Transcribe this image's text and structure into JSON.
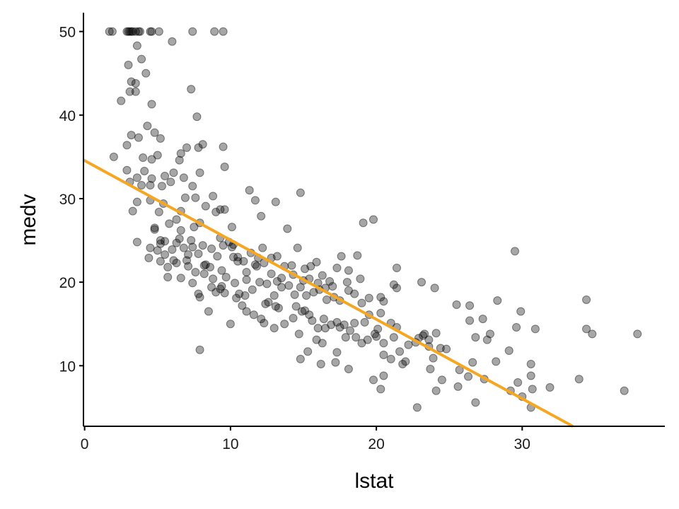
{
  "chart_data": {
    "type": "scatter",
    "xlabel": "lstat",
    "ylabel": "medv",
    "xlim": [
      -0.08,
      39.78
    ],
    "ylim": [
      2.75,
      52.25
    ],
    "x_ticks": [
      0,
      10,
      20,
      30
    ],
    "y_ticks": [
      10,
      20,
      30,
      40,
      50
    ],
    "x_tick_labels": [
      "0",
      "10",
      "20",
      "30"
    ],
    "y_tick_labels": [
      "10",
      "20",
      "30",
      "40",
      "50"
    ],
    "grid": false,
    "point_color": "#000000",
    "point_alpha": 0.35,
    "fit_line": {
      "type": "linear",
      "intercept": 34.55,
      "slope": -0.95,
      "color": "#F5A623"
    },
    "points": [
      [
        1.7,
        50
      ],
      [
        1.9,
        50
      ],
      [
        2.9,
        50
      ],
      [
        3.0,
        50
      ],
      [
        3.1,
        50
      ],
      [
        3.2,
        50
      ],
      [
        3.3,
        50
      ],
      [
        3.5,
        50
      ],
      [
        3.7,
        50
      ],
      [
        3.8,
        50
      ],
      [
        4.5,
        50
      ],
      [
        4.6,
        50
      ],
      [
        5.1,
        50
      ],
      [
        7.4,
        50
      ],
      [
        8.9,
        50
      ],
      [
        9.5,
        50
      ],
      [
        6,
        48.8
      ],
      [
        3.6,
        48.3
      ],
      [
        3.9,
        46.7
      ],
      [
        3,
        46
      ],
      [
        4.2,
        45
      ],
      [
        3.2,
        44
      ],
      [
        3.5,
        43.8
      ],
      [
        3.1,
        42.8
      ],
      [
        3.5,
        42.8
      ],
      [
        7.3,
        43.1
      ],
      [
        2.5,
        41.7
      ],
      [
        4.6,
        41.3
      ],
      [
        7.7,
        39.8
      ],
      [
        4.3,
        38.7
      ],
      [
        3.2,
        37.6
      ],
      [
        4.8,
        37.9
      ],
      [
        5.2,
        37.2
      ],
      [
        3.7,
        37.3
      ],
      [
        2.9,
        36.4
      ],
      [
        8.1,
        36.5
      ],
      [
        7,
        36.1
      ],
      [
        7.8,
        36.1
      ],
      [
        9.5,
        36.2
      ],
      [
        2,
        35
      ],
      [
        5,
        35.2
      ],
      [
        6.6,
        35.4
      ],
      [
        4,
        34.9
      ],
      [
        4.6,
        34.7
      ],
      [
        6.5,
        34.6
      ],
      [
        9.6,
        33.8
      ],
      [
        2.9,
        33.4
      ],
      [
        4.1,
        33.3
      ],
      [
        5.5,
        32.7
      ],
      [
        6.1,
        33.1
      ],
      [
        7.9,
        33.1
      ],
      [
        3.6,
        32.5
      ],
      [
        4.6,
        32.4
      ],
      [
        6.8,
        32.5
      ],
      [
        5.9,
        32
      ],
      [
        3.1,
        32
      ],
      [
        3.9,
        31.6
      ],
      [
        4.5,
        31.6
      ],
      [
        5.3,
        31.5
      ],
      [
        7.4,
        31.5
      ],
      [
        8.8,
        30.3
      ],
      [
        11.3,
        31
      ],
      [
        6.9,
        30.1
      ],
      [
        7.6,
        30.1
      ],
      [
        4.5,
        29.8
      ],
      [
        3.6,
        29.6
      ],
      [
        5.4,
        29.4
      ],
      [
        8.3,
        29.1
      ],
      [
        9.3,
        28.7
      ],
      [
        9.6,
        28.7
      ],
      [
        11.7,
        29.8
      ],
      [
        13.1,
        29.6
      ],
      [
        14.8,
        30.7
      ],
      [
        3.3,
        28.5
      ],
      [
        5.1,
        28.4
      ],
      [
        6.6,
        28.5
      ],
      [
        9,
        28.4
      ],
      [
        12.1,
        27.9
      ],
      [
        7.9,
        27.1
      ],
      [
        6.3,
        27.5
      ],
      [
        5.8,
        27
      ],
      [
        4.8,
        26.5
      ],
      [
        7.5,
        26.6
      ],
      [
        10.1,
        26.6
      ],
      [
        13.9,
        26.4
      ],
      [
        6.6,
        26.2
      ],
      [
        9.3,
        25.3
      ],
      [
        19.1,
        27.1
      ],
      [
        19.8,
        27.5
      ],
      [
        3.6,
        24.8
      ],
      [
        4.5,
        24.1
      ],
      [
        5,
        23.8
      ],
      [
        5.2,
        24.6
      ],
      [
        5.5,
        24.9
      ],
      [
        6,
        23.9
      ],
      [
        6.3,
        24.7
      ],
      [
        6.8,
        24.1
      ],
      [
        7.1,
        23.3
      ],
      [
        7.4,
        24.2
      ],
      [
        7.8,
        23.4
      ],
      [
        8.2,
        22
      ],
      [
        8.7,
        24
      ],
      [
        9.1,
        23.1
      ],
      [
        9.5,
        24.4
      ],
      [
        9.9,
        24.8
      ],
      [
        10.2,
        24.5
      ],
      [
        10.5,
        23
      ],
      [
        10.9,
        22.5
      ],
      [
        11.4,
        23.5
      ],
      [
        11.9,
        22.9
      ],
      [
        12.3,
        22.3
      ],
      [
        12.8,
        22.9
      ],
      [
        13.2,
        23.1
      ],
      [
        13.7,
        21.9
      ],
      [
        14.2,
        22
      ],
      [
        14.6,
        24.1
      ],
      [
        15.1,
        21.6
      ],
      [
        15.5,
        21.9
      ],
      [
        15.9,
        22.4
      ],
      [
        16.3,
        20.8
      ],
      [
        16.8,
        20.1
      ],
      [
        17.3,
        21.7
      ],
      [
        17.6,
        23.1
      ],
      [
        18.1,
        21.4
      ],
      [
        18.7,
        23.2
      ],
      [
        4.4,
        22.9
      ],
      [
        5.2,
        22.5
      ],
      [
        5.7,
        21.8
      ],
      [
        6.3,
        22.3
      ],
      [
        7,
        22.6
      ],
      [
        7.6,
        21.2
      ],
      [
        8.2,
        21
      ],
      [
        8.8,
        20.4
      ],
      [
        9.4,
        19.5
      ],
      [
        9.7,
        20.6
      ],
      [
        10.3,
        19.9
      ],
      [
        10.6,
        18.6
      ],
      [
        11.1,
        20.3
      ],
      [
        11.5,
        19.1
      ],
      [
        12,
        20
      ],
      [
        12.5,
        19.8
      ],
      [
        13,
        18.4
      ],
      [
        13.5,
        19.4
      ],
      [
        14,
        19.6
      ],
      [
        14.4,
        18.5
      ],
      [
        14.8,
        19.4
      ],
      [
        15.2,
        18.4
      ],
      [
        15.7,
        18.8
      ],
      [
        16.1,
        19.1
      ],
      [
        16.6,
        17.9
      ],
      [
        17.1,
        18.2
      ],
      [
        17.5,
        17.8
      ],
      [
        18.1,
        19
      ],
      [
        18.5,
        18.6
      ],
      [
        19,
        17.5
      ],
      [
        19.5,
        16.1
      ],
      [
        20.3,
        16.3
      ],
      [
        21,
        15.1
      ],
      [
        21.4,
        21.7
      ],
      [
        21.2,
        19.7
      ],
      [
        21.4,
        19.3
      ],
      [
        23.1,
        20
      ],
      [
        24,
        19.3
      ],
      [
        12.4,
        17.4
      ],
      [
        13.1,
        17.1
      ],
      [
        14.5,
        17.1
      ],
      [
        15.1,
        16.6
      ],
      [
        15.6,
        15.4
      ],
      [
        16,
        14.5
      ],
      [
        16.4,
        15.6
      ],
      [
        16.9,
        14.9
      ],
      [
        17.3,
        15.2
      ],
      [
        17.8,
        14.9
      ],
      [
        18.2,
        14.2
      ],
      [
        18.6,
        13.4
      ],
      [
        19,
        12.7
      ],
      [
        19.4,
        13.1
      ],
      [
        20.1,
        14.4
      ],
      [
        20.5,
        12.7
      ],
      [
        21.2,
        13.4
      ],
      [
        21.6,
        11.7
      ],
      [
        22,
        10.5
      ],
      [
        22.9,
        13.3
      ],
      [
        23.3,
        13.8
      ],
      [
        23.6,
        13.1
      ],
      [
        24.1,
        13.9
      ],
      [
        24.4,
        12.1
      ],
      [
        10,
        15
      ],
      [
        11.1,
        16.5
      ],
      [
        12.3,
        15.1
      ],
      [
        13,
        14.5
      ],
      [
        13.7,
        15
      ],
      [
        14.7,
        13.8
      ],
      [
        15.9,
        13.1
      ],
      [
        16.3,
        12.7
      ],
      [
        17.3,
        11.6
      ],
      [
        18.1,
        9.6
      ],
      [
        14.8,
        10.8
      ],
      [
        15.3,
        11.7
      ],
      [
        16.2,
        10.2
      ],
      [
        17.2,
        10.4
      ],
      [
        20,
        13.5
      ],
      [
        20.5,
        11.3
      ],
      [
        21,
        10.8
      ],
      [
        21.8,
        10.2
      ],
      [
        19.8,
        8.3
      ],
      [
        20.5,
        8.8
      ],
      [
        20.3,
        7.2
      ],
      [
        22.8,
        5
      ],
      [
        23.6,
        12.3
      ],
      [
        23.9,
        10.9
      ],
      [
        23.7,
        9.6
      ],
      [
        24.1,
        7
      ],
      [
        24.5,
        8.3
      ],
      [
        25.5,
        17.3
      ],
      [
        26.4,
        17.2
      ],
      [
        27.3,
        15.6
      ],
      [
        26.4,
        15.4
      ],
      [
        26.8,
        13.4
      ],
      [
        27.6,
        13.1
      ],
      [
        27.8,
        13.8
      ],
      [
        28.3,
        17.8
      ],
      [
        29.5,
        23.7
      ],
      [
        29.6,
        14.6
      ],
      [
        29.9,
        16.5
      ],
      [
        30.9,
        14.4
      ],
      [
        29.1,
        11.8
      ],
      [
        30.6,
        10.2
      ],
      [
        30.6,
        8.8
      ],
      [
        30.7,
        7.2
      ],
      [
        29.7,
        8
      ],
      [
        30,
        6.3
      ],
      [
        30.6,
        5
      ],
      [
        26.6,
        10.4
      ],
      [
        26.3,
        8.7
      ],
      [
        25.6,
        7.5
      ],
      [
        26.8,
        5.6
      ],
      [
        25.7,
        9.5
      ],
      [
        27.4,
        8.4
      ],
      [
        28.2,
        10.5
      ],
      [
        29.2,
        7
      ],
      [
        31.9,
        7.4
      ],
      [
        33.9,
        8.4
      ],
      [
        34.4,
        17.9
      ],
      [
        34.4,
        14.4
      ],
      [
        34.8,
        13.8
      ],
      [
        37.9,
        13.8
      ],
      [
        37,
        7
      ],
      [
        7.9,
        11.9
      ],
      [
        8.5,
        16.5
      ],
      [
        7.9,
        18.2
      ],
      [
        7.8,
        18.6
      ],
      [
        6.6,
        20.5
      ],
      [
        5.7,
        20.6
      ],
      [
        7.4,
        19.9
      ],
      [
        8.7,
        19.4
      ],
      [
        9,
        18.8
      ],
      [
        9.3,
        19.2
      ],
      [
        10.4,
        18.1
      ],
      [
        11,
        18.4
      ],
      [
        11.6,
        16.1
      ],
      [
        12.1,
        15.6
      ],
      [
        12.6,
        17.6
      ],
      [
        13.3,
        16.9
      ],
      [
        14.3,
        15.7
      ],
      [
        14.9,
        16.5
      ],
      [
        15.4,
        16.1
      ],
      [
        16.5,
        14.5
      ],
      [
        17.5,
        14.6
      ],
      [
        17.9,
        13.4
      ],
      [
        18.5,
        15.1
      ],
      [
        19.2,
        15.2
      ],
      [
        19.9,
        13.8
      ],
      [
        10.5,
        22.5
      ],
      [
        11.8,
        21.9
      ],
      [
        12.8,
        21
      ],
      [
        13.5,
        20.5
      ],
      [
        14.3,
        20.9
      ],
      [
        15,
        20.2
      ],
      [
        15.4,
        20.4
      ],
      [
        16,
        19.9
      ],
      [
        16.5,
        19.3
      ],
      [
        17,
        19.5
      ],
      [
        18,
        20
      ],
      [
        18.9,
        20.4
      ],
      [
        19.5,
        18.1
      ],
      [
        20.3,
        18.2
      ],
      [
        20.5,
        17.7
      ],
      [
        21.4,
        14.6
      ],
      [
        22.2,
        12.5
      ],
      [
        22.7,
        12.8
      ],
      [
        23.2,
        13.6
      ],
      [
        24.8,
        12
      ],
      [
        10.2,
        23
      ],
      [
        8.3,
        22.1
      ],
      [
        8.1,
        24.4
      ],
      [
        6.5,
        25.2
      ],
      [
        7.3,
        25
      ],
      [
        5.2,
        25
      ],
      [
        4.8,
        26.3
      ],
      [
        10.1,
        24.2
      ],
      [
        11.7,
        22.1
      ],
      [
        12.2,
        24.1
      ],
      [
        13.2,
        20.1
      ],
      [
        9.6,
        18.7
      ],
      [
        10.8,
        17.2
      ],
      [
        9.4,
        21.4
      ],
      [
        11.1,
        21.2
      ],
      [
        8.6,
        21.8
      ],
      [
        7.1,
        21.9
      ],
      [
        6.1,
        22.6
      ],
      [
        5.5,
        23.3
      ]
    ]
  }
}
